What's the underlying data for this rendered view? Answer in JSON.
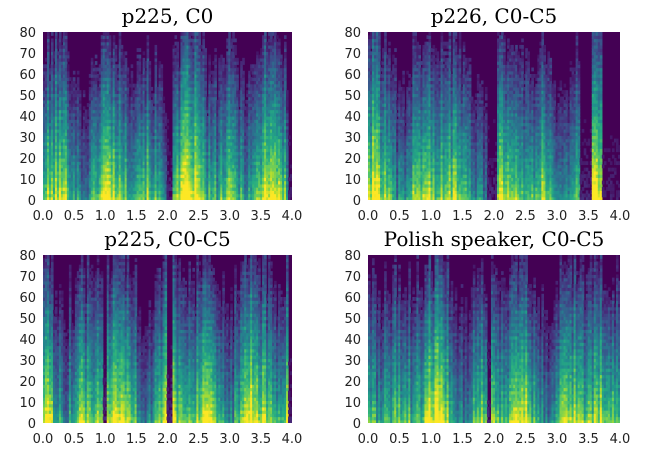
{
  "chart_data": [
    {
      "type": "heatmap",
      "title": "p225, C0",
      "x_ticks": [
        "0.0",
        "0.5",
        "1.0",
        "1.5",
        "2.0",
        "2.5",
        "3.0",
        "3.5",
        "4.0"
      ],
      "y_ticks": [
        "0",
        "10",
        "20",
        "30",
        "40",
        "50",
        "60",
        "70",
        "80"
      ],
      "xlim": [
        0,
        4.0
      ],
      "ylim": [
        0,
        80
      ],
      "active_time": [
        0.0,
        3.95
      ],
      "silent_gaps": [
        [
          2.0,
          2.08
        ]
      ],
      "colormap": "viridis"
    },
    {
      "type": "heatmap",
      "title": "p226, C0-C5",
      "x_ticks": [
        "0.0",
        "0.5",
        "1.0",
        "1.5",
        "2.0",
        "2.5",
        "3.0",
        "3.5",
        "4.0"
      ],
      "y_ticks": [
        "0",
        "10",
        "20",
        "30",
        "40",
        "50",
        "60",
        "70",
        "80"
      ],
      "xlim": [
        0,
        4.0
      ],
      "ylim": [
        0,
        80
      ],
      "active_time": [
        0.0,
        3.72
      ],
      "silent_gaps": [
        [
          1.9,
          2.05
        ],
        [
          3.35,
          3.55
        ]
      ],
      "colormap": "viridis"
    },
    {
      "type": "heatmap",
      "title": "p225, C0-C5",
      "x_ticks": [
        "0.0",
        "0.5",
        "1.0",
        "1.5",
        "2.0",
        "2.5",
        "3.0",
        "3.5",
        "4.0"
      ],
      "y_ticks": [
        "0",
        "10",
        "20",
        "30",
        "40",
        "50",
        "60",
        "70",
        "80"
      ],
      "xlim": [
        0,
        4.0
      ],
      "ylim": [
        0,
        80
      ],
      "active_time": [
        0.0,
        3.95
      ],
      "silent_gaps": [
        [
          0.95,
          1.02
        ],
        [
          2.0,
          2.07
        ]
      ],
      "colormap": "viridis"
    },
    {
      "type": "heatmap",
      "title": "Polish speaker, C0-C5",
      "x_ticks": [
        "0.0",
        "0.5",
        "1.0",
        "1.5",
        "2.0",
        "2.5",
        "3.0",
        "3.5",
        "4.0"
      ],
      "y_ticks": [
        "0",
        "10",
        "20",
        "30",
        "40",
        "50",
        "60",
        "70",
        "80"
      ],
      "xlim": [
        0,
        4.0
      ],
      "ylim": [
        0,
        80
      ],
      "active_time": [
        0.0,
        4.0
      ],
      "silent_gaps": [
        [
          1.9,
          1.95
        ]
      ],
      "colormap": "viridis"
    }
  ]
}
